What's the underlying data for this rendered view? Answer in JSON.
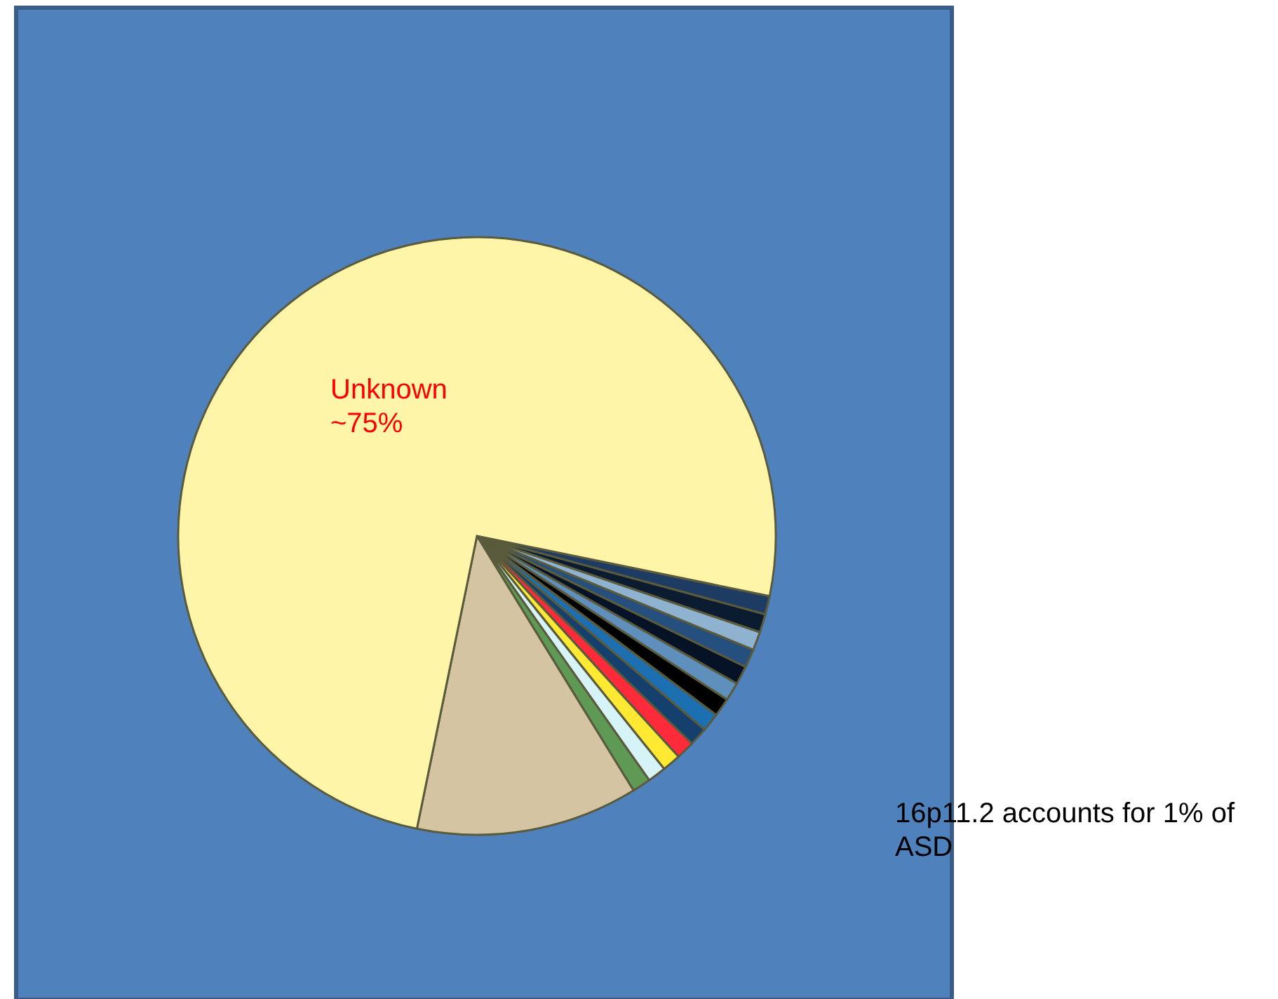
{
  "chart_data": {
    "type": "pie",
    "categories": [
      null,
      null,
      null,
      null,
      null,
      null,
      null,
      null,
      null,
      null,
      null,
      null,
      null,
      null,
      "Unknown"
    ],
    "values": [
      1,
      1,
      1,
      1,
      1,
      1,
      1,
      1,
      1,
      1,
      1,
      1,
      1,
      12,
      75
    ],
    "colors": [
      "#1e3c63",
      "#0b1b30",
      "#8fb2d0",
      "#244f7e",
      "#061226",
      "#5f8fbd",
      "#000000",
      "#1c6fb0",
      "#15406e",
      "#ff2a3a",
      "#ffe933",
      "#d6f3f7",
      "#5e9a55",
      "#d5c4a1",
      "#fff5a8"
    ],
    "value_labels": [
      null,
      null,
      null,
      null,
      null,
      null,
      null,
      null,
      null,
      null,
      null,
      null,
      null,
      null,
      "~75%"
    ],
    "annotations": [
      "16p11.2 accounts for 1% of ASD"
    ]
  }
}
